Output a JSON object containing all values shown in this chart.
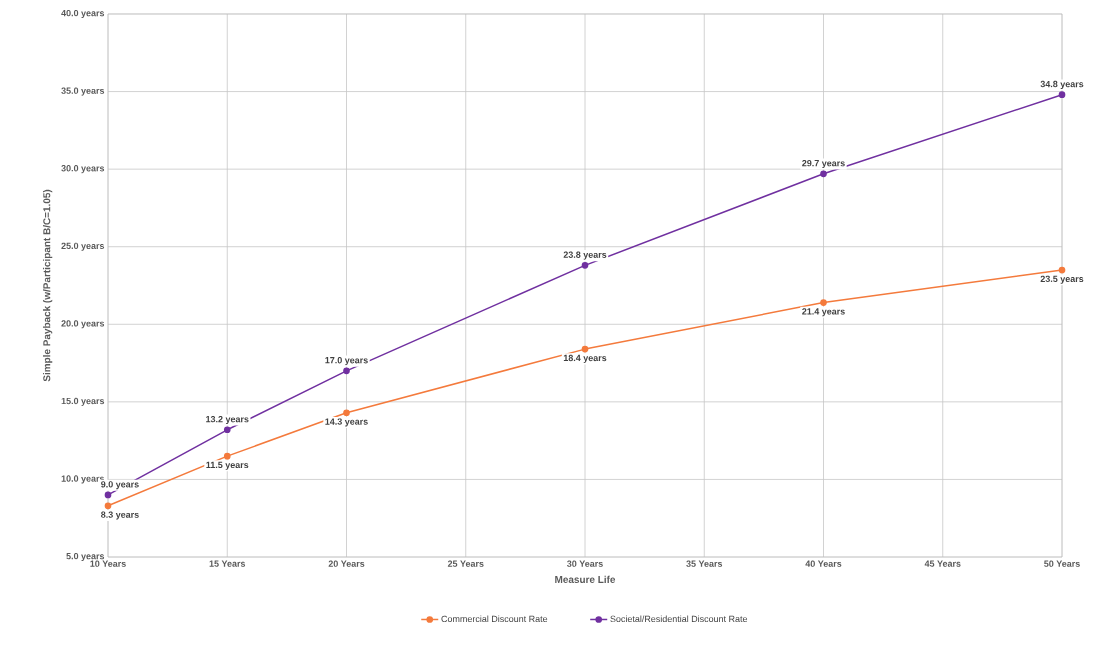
{
  "chart_data": {
    "type": "line",
    "xlabel": "Measure Life",
    "ylabel": "Simple Payback (w/Participant B/C=1.05)",
    "x": [
      10,
      15,
      20,
      30,
      40,
      50
    ],
    "series": [
      {
        "name": "Commercial Discount Rate",
        "color": "#f47a3c",
        "values": [
          8.3,
          11.5,
          14.3,
          18.4,
          21.4,
          23.5
        ],
        "value_labels": [
          "8.3 years",
          "11.5 years",
          "14.3 years",
          "18.4 years",
          "21.4 years",
          "23.5 years"
        ]
      },
      {
        "name": "Societal/Residential Discount Rate",
        "color": "#7030a0",
        "values": [
          9.0,
          13.2,
          17.0,
          23.8,
          29.7,
          34.8
        ],
        "value_labels": [
          "9.0 years",
          "13.2 years",
          "17.0 years",
          "23.8 years",
          "29.7 years",
          "34.8 years"
        ]
      }
    ],
    "xlim": [
      10,
      50
    ],
    "ylim": [
      5,
      40
    ],
    "xticks": [
      {
        "value": 10,
        "label": "10 Years"
      },
      {
        "value": 15,
        "label": "15 Years"
      },
      {
        "value": 20,
        "label": "20 Years"
      },
      {
        "value": 25,
        "label": "25 Years"
      },
      {
        "value": 30,
        "label": "30 Years"
      },
      {
        "value": 35,
        "label": "35 Years"
      },
      {
        "value": 40,
        "label": "40 Years"
      },
      {
        "value": 45,
        "label": "45 Years"
      },
      {
        "value": 50,
        "label": "50 Years"
      }
    ],
    "yticks": [
      {
        "value": 5,
        "label": "5.0 years"
      },
      {
        "value": 10,
        "label": "10.0 years"
      },
      {
        "value": 15,
        "label": "15.0 years"
      },
      {
        "value": 20,
        "label": "20.0 years"
      },
      {
        "value": 25,
        "label": "25.0 years"
      },
      {
        "value": 30,
        "label": "30.0 years"
      },
      {
        "value": 35,
        "label": "35.0 years"
      },
      {
        "value": 40,
        "label": "40.0 years"
      }
    ],
    "grid": true,
    "legend": "bottom",
    "marker": "circle",
    "line_style": "solid"
  }
}
